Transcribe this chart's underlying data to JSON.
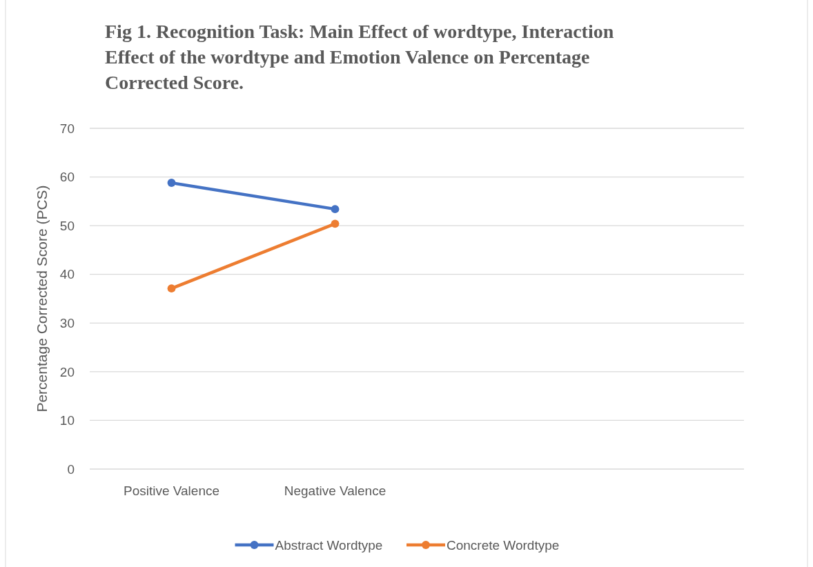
{
  "chart_data": {
    "type": "line",
    "title": "Fig 1. Recognition Task: Main Effect of wordtype, Interaction Effect of the wordtype and Emotion Valence on Percentage Corrected Score.",
    "ylabel": "Percentage Corrected Score (PCS)",
    "categories": [
      "Positive Valence",
      "Negative Valence",
      null,
      null
    ],
    "series": [
      {
        "name": "Abstract Wordtype",
        "color": "#4472c4",
        "values": [
          58.8,
          53.4,
          null,
          null
        ]
      },
      {
        "name": "Concrete Wordtype",
        "color": "#ed7d31",
        "values": [
          37.1,
          50.4,
          null,
          null
        ]
      }
    ],
    "ylim": [
      0,
      70
    ],
    "yticks": [
      0,
      10,
      20,
      30,
      40,
      50,
      60,
      70
    ],
    "grid": "y",
    "legend": "bottom",
    "marker": "circle",
    "line_style": "solid"
  }
}
